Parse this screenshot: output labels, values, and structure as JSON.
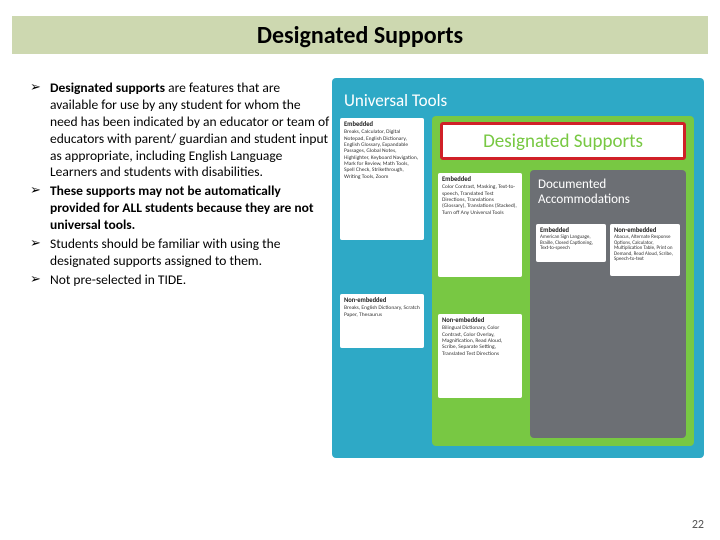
{
  "title": "Designated Supports",
  "bullets": [
    {
      "lead": "Designated supports",
      "rest": " are features that are available for use by any student for whom the need has been indicated by an educator or team of educators with parent/ guardian and student input as appropriate, including English Language Learners and students with disabilities.",
      "bold_all": false
    },
    {
      "lead": "",
      "rest": "These supports may not be automatically provided for ALL students because they are not universal tools.",
      "bold_all": true
    },
    {
      "lead": "",
      "rest": "Students should be familiar with using the designated supports assigned to them.",
      "bold_all": false
    },
    {
      "lead": "",
      "rest": "Not pre-selected in TIDE.",
      "bold_all": false
    }
  ],
  "diagram": {
    "bg": "#2ea9c6",
    "universal_label": "Universal Tools",
    "universal_embedded": {
      "head": "Embedded",
      "body": "Breaks, Calculator, Digital Notepad, English Dictionary, English Glossary, Expandable Passages, Global Notes, Highlighter, Keyboard Navigation, Mark for Review, Math Tools, Spell Check, Strikethrough, Writing Tools, Zoom"
    },
    "universal_nonembedded": {
      "head": "Non-embedded",
      "body": "Breaks, English Dictionary, Scratch Paper, Thesaurus"
    },
    "designated_label": "Designated Supports",
    "des_embedded": {
      "head": "Embedded",
      "body": "Color Contrast, Masking, Text-to-speech, Translated Test Directions, Translations (Glossary), Translations (Stacked), Turn off Any Universal Tools"
    },
    "des_nonembedded": {
      "head": "Non-embedded",
      "body": "Bilingual Dictionary, Color Contrast, Color Overlay, Magnification, Read Aloud, Scribe, Separate Setting, Translated Test Directions"
    },
    "accom_label": "Documented Accommodations",
    "accom_embedded": {
      "head": "Embedded",
      "body": "American Sign Language, Braille, Closed Captioning, Text-to-speech"
    },
    "accom_nonembedded": {
      "head": "Non-embedded",
      "body": "Abacus, Alternate Response Options, Calculator, Multiplication Table, Print on Demand, Read Aloud, Scribe, Speech-to-text"
    },
    "highlight_color": "#d02028"
  },
  "page_number": "22"
}
